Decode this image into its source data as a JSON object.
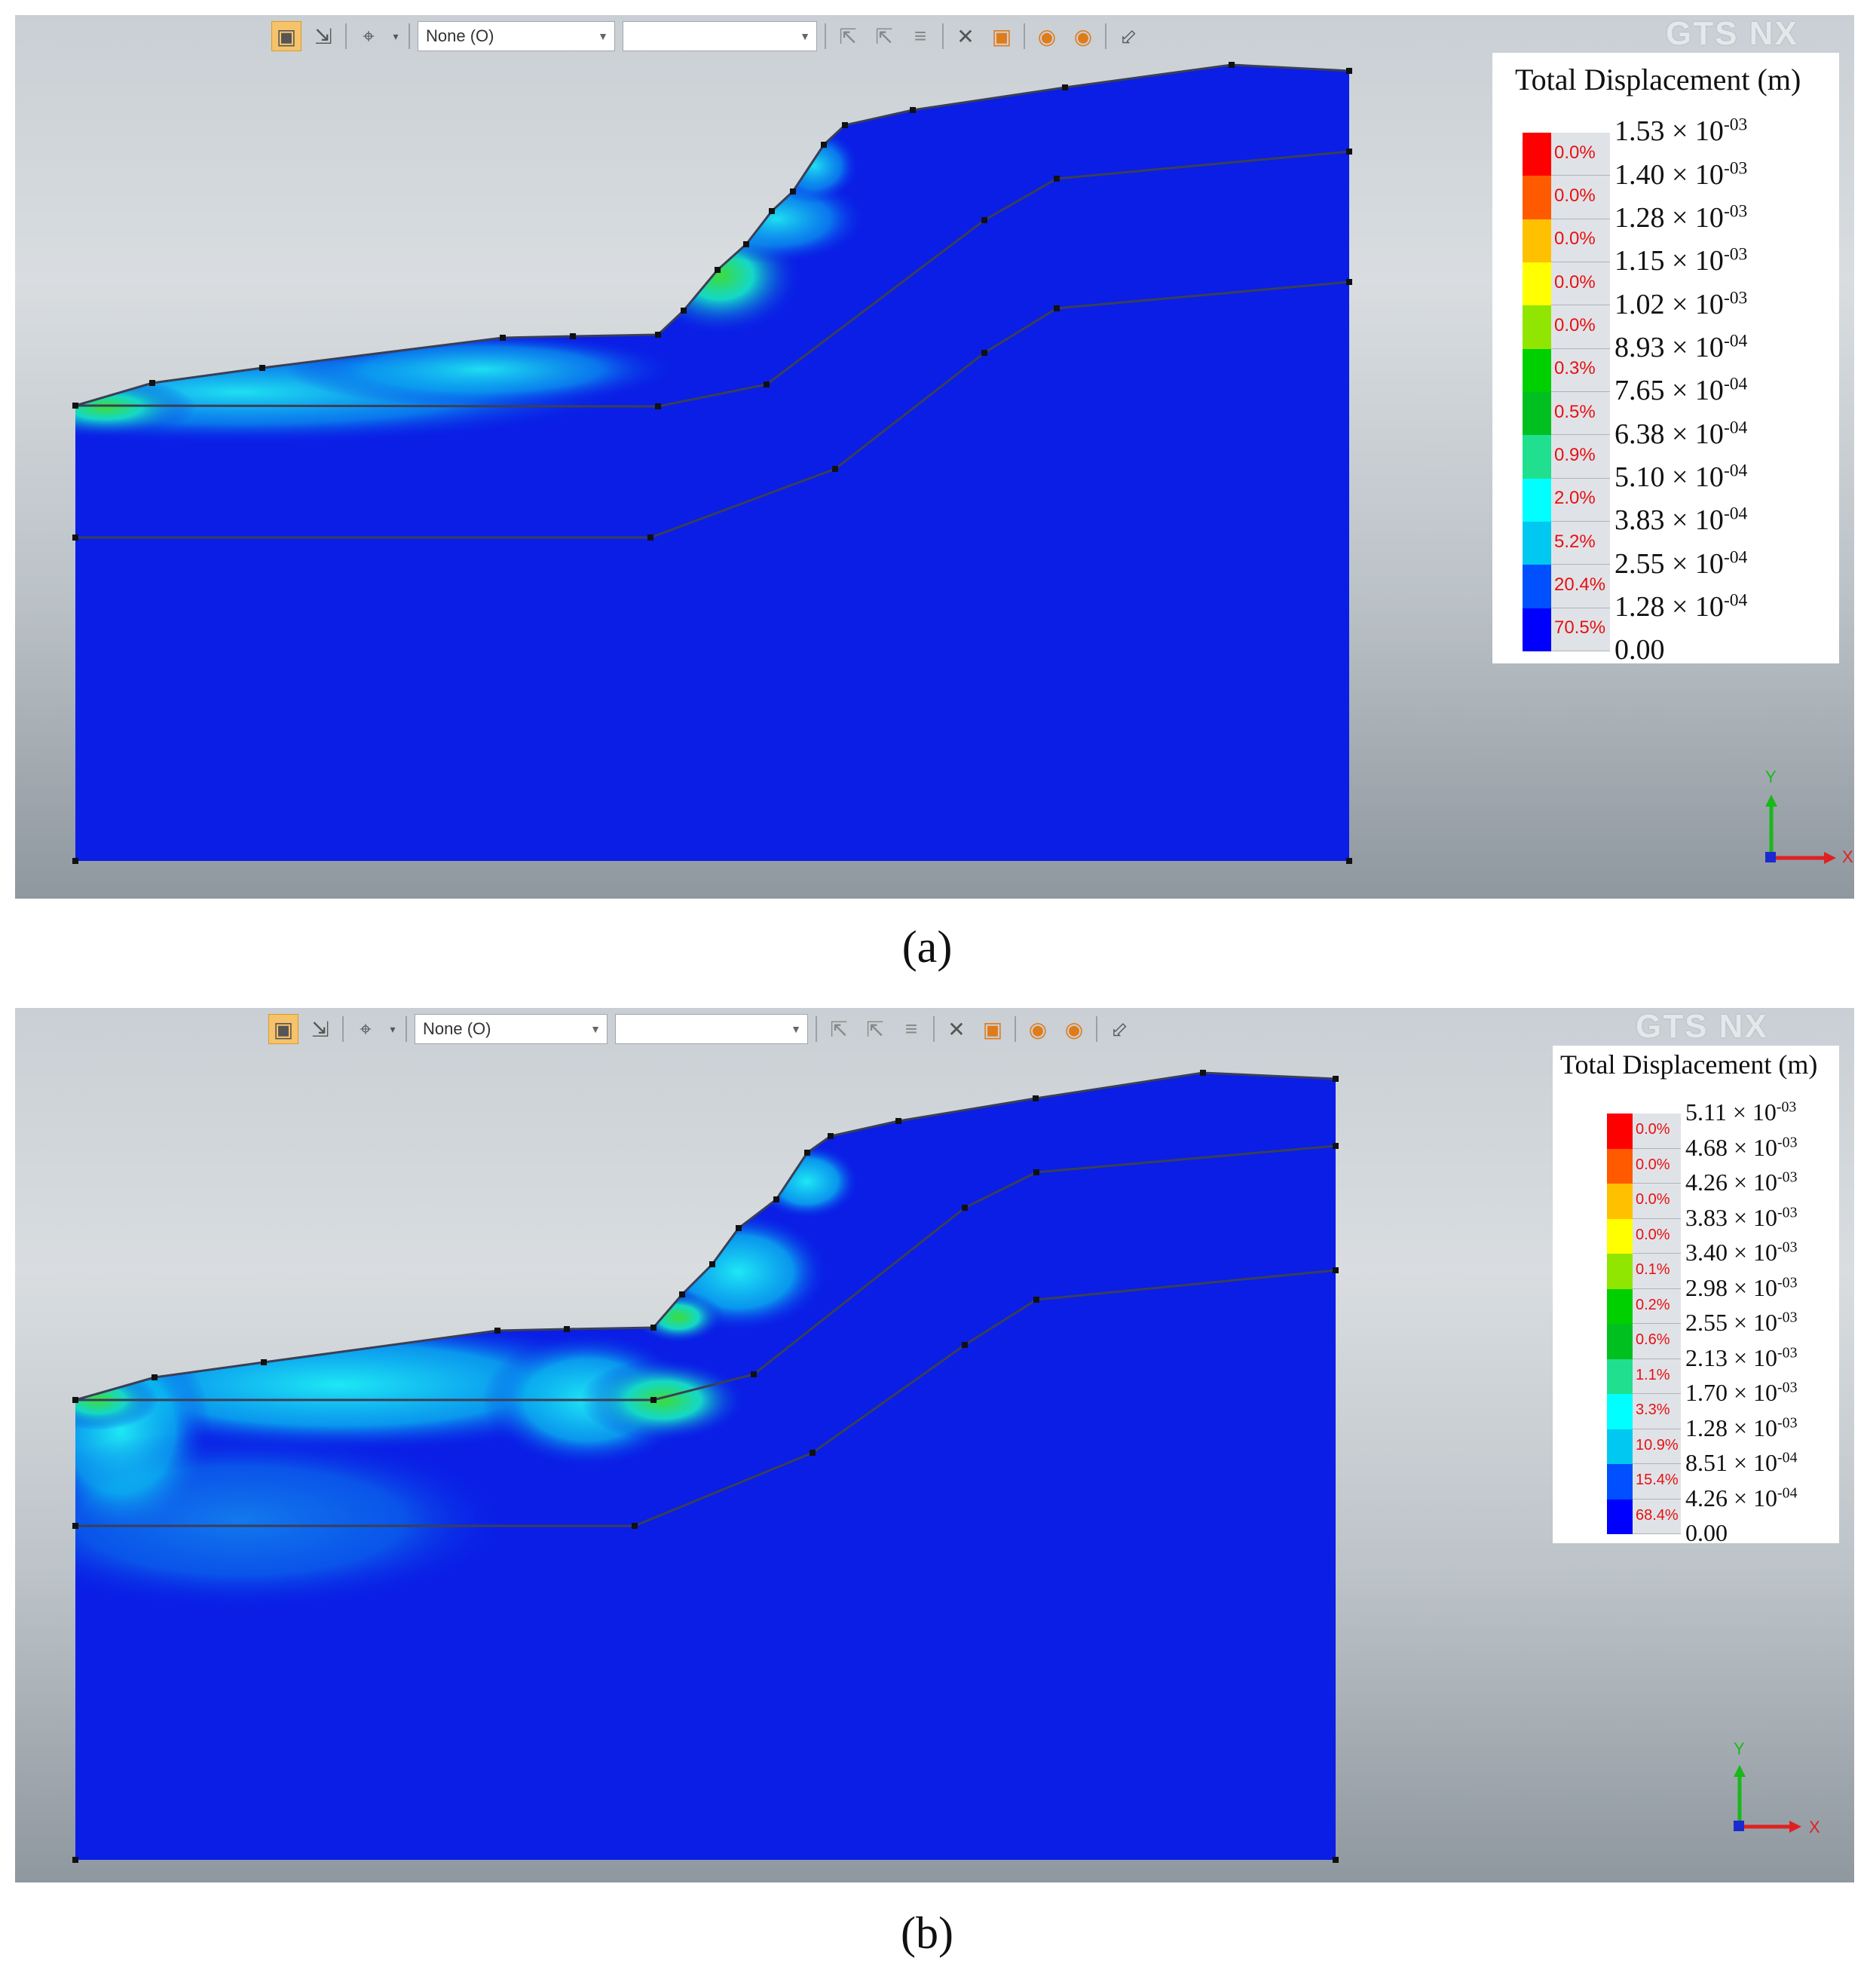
{
  "panels": [
    {
      "caption": "(a)",
      "toolbar": {
        "dropdown1_value": "None (O)",
        "dropdown2_value": ""
      },
      "logo": "GTS NX",
      "legend": {
        "title": "Total Displacement (m)",
        "values": [
          "1.53 × 10-03",
          "1.40 × 10-03",
          "1.28 × 10-03",
          "1.15 × 10-03",
          "1.02 × 10-03",
          "8.93 × 10-04",
          "7.65 × 10-04",
          "6.38 × 10-04",
          "5.10 × 10-04",
          "3.83 × 10-04",
          "2.55 × 10-04",
          "1.28 × 10-04",
          "0.00"
        ],
        "percents": [
          "0.0%",
          "0.0%",
          "0.0%",
          "0.0%",
          "0.0%",
          "0.3%",
          "0.5%",
          "0.9%",
          "2.0%",
          "5.2%",
          "20.4%",
          "70.5%"
        ]
      },
      "axis": {
        "y": "Y",
        "x": "X"
      }
    },
    {
      "caption": "(b)",
      "toolbar": {
        "dropdown1_value": "None (O)",
        "dropdown2_value": ""
      },
      "logo": "GTS NX",
      "legend": {
        "title": "Total Displacement (m)",
        "values": [
          "5.11 × 10-03",
          "4.68 × 10-03",
          "4.26 × 10-03",
          "3.83 × 10-03",
          "3.40 × 10-03",
          "2.98 × 10-03",
          "2.55 × 10-03",
          "2.13 × 10-03",
          "1.70 × 10-03",
          "1.28 × 10-03",
          "8.51 × 10-04",
          "4.26 × 10-04",
          "0.00"
        ],
        "percents": [
          "0.0%",
          "0.0%",
          "0.0%",
          "0.0%",
          "0.1%",
          "0.2%",
          "0.6%",
          "1.1%",
          "3.3%",
          "10.9%",
          "15.4%",
          "68.4%"
        ]
      },
      "axis": {
        "y": "Y",
        "x": "X"
      }
    }
  ],
  "colors": {
    "legend_scale": [
      "#ff0000",
      "#ff5a00",
      "#ffc000",
      "#ffff00",
      "#90e600",
      "#00d000",
      "#00c020",
      "#20e090",
      "#00ffff",
      "#00c8f0",
      "#0050ff",
      "#0000ff"
    ],
    "model_fill": "#0a1ee6",
    "highlight_green": "#3ddc3a",
    "highlight_cyan": "#1ee0f0"
  }
}
